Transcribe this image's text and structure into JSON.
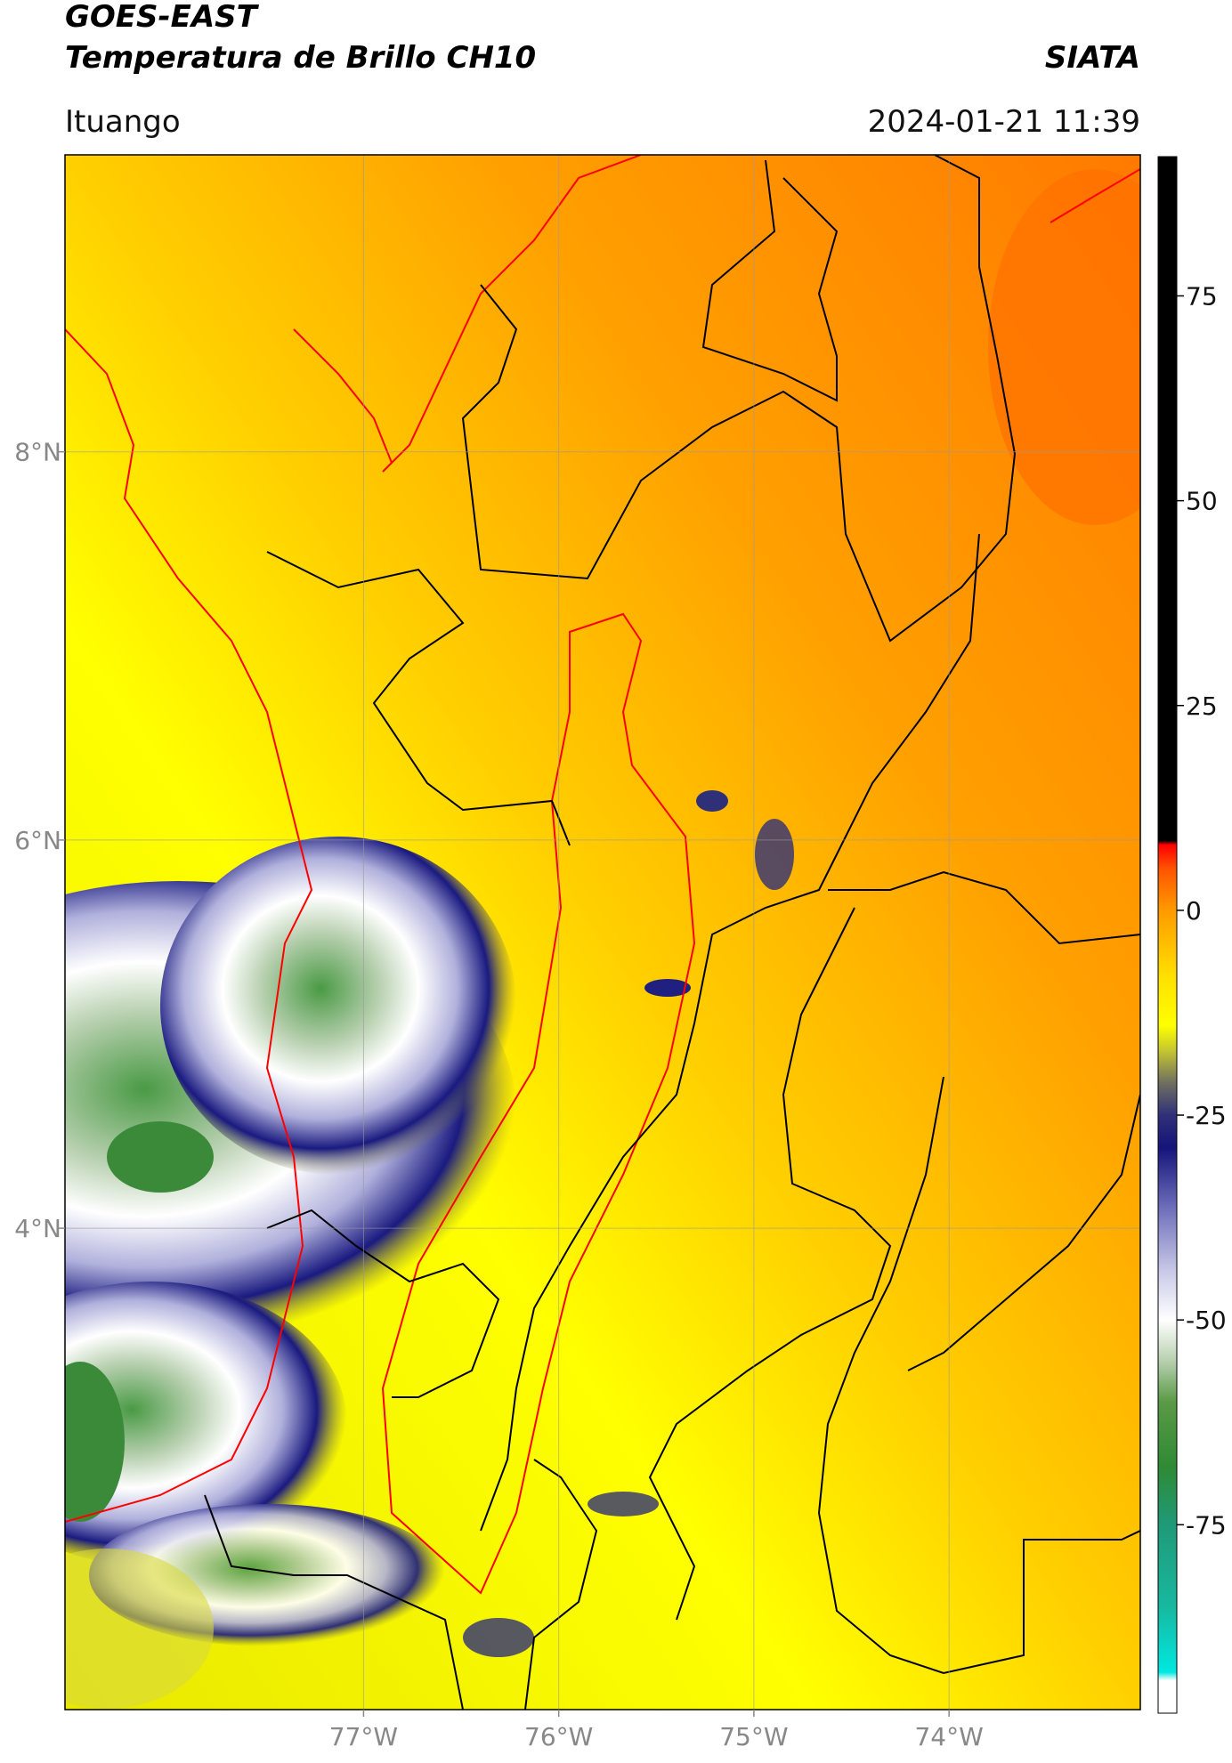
{
  "header": {
    "title": "GOES-EAST",
    "subtitle": "Temperatura de Brillo CH10",
    "source": "SIATA",
    "location": "Ituango",
    "datetime": "2024-01-21 11:39"
  },
  "map": {
    "xlim": [
      -78.53,
      -73.02
    ],
    "ylim": [
      1.52,
      9.53
    ],
    "xticks": [
      {
        "value": -77,
        "label": "77°W"
      },
      {
        "value": -76,
        "label": "76°W"
      },
      {
        "value": -75,
        "label": "75°W"
      },
      {
        "value": -74,
        "label": "74°W"
      }
    ],
    "yticks": [
      {
        "value": 4,
        "label": "4°N"
      },
      {
        "value": 6,
        "label": "6°N"
      },
      {
        "value": 8,
        "label": "8°N"
      }
    ],
    "grid": true
  },
  "colorbar": {
    "clim": [
      -98,
      92
    ],
    "ticks": [
      -75,
      -50,
      -25,
      0,
      25,
      50,
      75
    ],
    "stops": [
      {
        "value": -98,
        "color": "#ffffff"
      },
      {
        "value": -94,
        "color": "#ffffff"
      },
      {
        "value": -93,
        "color": "#00e8e0"
      },
      {
        "value": -85,
        "color": "#18b8a0"
      },
      {
        "value": -75,
        "color": "#1f9a78"
      },
      {
        "value": -68,
        "color": "#2f8a35"
      },
      {
        "value": -60,
        "color": "#5a9a45"
      },
      {
        "value": -55,
        "color": "#b8d0b0"
      },
      {
        "value": -50,
        "color": "#ffffff"
      },
      {
        "value": -44,
        "color": "#c8c8e8"
      },
      {
        "value": -36,
        "color": "#6a6ab8"
      },
      {
        "value": -29,
        "color": "#14147a"
      },
      {
        "value": -25,
        "color": "#303078"
      },
      {
        "value": -21,
        "color": "#707060"
      },
      {
        "value": -17,
        "color": "#c8c830"
      },
      {
        "value": -14,
        "color": "#ffff00"
      },
      {
        "value": -8,
        "color": "#ffe000"
      },
      {
        "value": 0,
        "color": "#ff9a00"
      },
      {
        "value": 5,
        "color": "#ff5500"
      },
      {
        "value": 8,
        "color": "#ff0000"
      },
      {
        "value": 8.5,
        "color": "#000000"
      },
      {
        "value": 92,
        "color": "#000000"
      }
    ]
  }
}
